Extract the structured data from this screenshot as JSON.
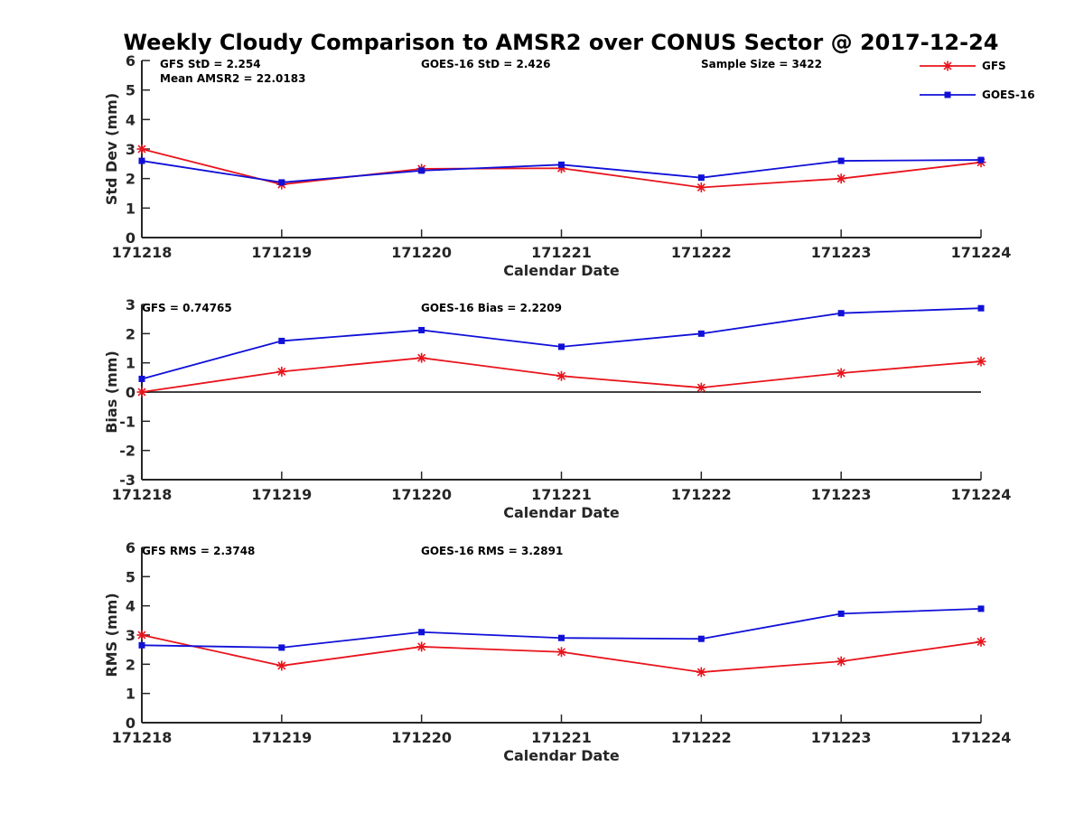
{
  "colors": {
    "gfs": "#e8141c",
    "goes": "#1010d8",
    "axis": "#262626",
    "zero_line": "#000000"
  },
  "legend": {
    "placement": "top-right",
    "entries": [
      {
        "name": "GFS",
        "marker": "asterisk",
        "color": "#e8141c"
      },
      {
        "name": "GOES-16",
        "marker": "square",
        "color": "#1010d8"
      }
    ]
  },
  "chart_data": [
    {
      "type": "line",
      "title": "Weekly Cloudy Comparison to AMSR2 over CONUS Sector @ 2017-12-24",
      "xlabel": "Calendar Date",
      "ylabel": "Std Dev (mm)",
      "categories": [
        "171218",
        "171219",
        "171220",
        "171221",
        "171222",
        "171223",
        "171224"
      ],
      "ylim": [
        0,
        6
      ],
      "yticks": [
        "0",
        "1",
        "2",
        "3",
        "4",
        "5",
        "6"
      ],
      "series": [
        {
          "name": "GFS",
          "values": [
            3.0,
            1.8,
            2.33,
            2.35,
            1.7,
            2.0,
            2.55
          ]
        },
        {
          "name": "GOES-16",
          "values": [
            2.6,
            1.87,
            2.27,
            2.47,
            2.03,
            2.6,
            2.63
          ]
        }
      ],
      "annotations": [
        "GFS StD = 2.254",
        "Mean AMSR2 = 22.0183",
        "GOES-16 StD = 2.426",
        "Sample Size = 3422"
      ]
    },
    {
      "type": "line",
      "xlabel": "Calendar Date",
      "ylabel": "Bias (mm)",
      "categories": [
        "171218",
        "171219",
        "171220",
        "171221",
        "171222",
        "171223",
        "171224"
      ],
      "ylim": [
        -3,
        3
      ],
      "yticks": [
        "-3",
        "-2",
        "-1",
        "0",
        "1",
        "2",
        "3"
      ],
      "zero_line": 0,
      "series": [
        {
          "name": "GFS",
          "values": [
            0.0,
            0.7,
            1.17,
            0.55,
            0.15,
            0.65,
            1.05
          ]
        },
        {
          "name": "GOES-16",
          "values": [
            0.45,
            1.75,
            2.12,
            1.55,
            2.0,
            2.7,
            2.87
          ]
        }
      ],
      "annotations": [
        "GFS = 0.74765",
        "GOES-16 Bias  = 2.2209"
      ]
    },
    {
      "type": "line",
      "xlabel": "Calendar Date",
      "ylabel": "RMS (mm)",
      "categories": [
        "171218",
        "171219",
        "171220",
        "171221",
        "171222",
        "171223",
        "171224"
      ],
      "ylim": [
        0,
        6
      ],
      "yticks": [
        "0",
        "1",
        "2",
        "3",
        "4",
        "5",
        "6"
      ],
      "series": [
        {
          "name": "GFS",
          "values": [
            3.0,
            1.95,
            2.6,
            2.42,
            1.73,
            2.1,
            2.77
          ]
        },
        {
          "name": "GOES-16",
          "values": [
            2.65,
            2.57,
            3.1,
            2.9,
            2.87,
            3.73,
            3.9
          ]
        }
      ],
      "annotations": [
        "GFS RMS = 2.3748",
        "GOES-16 RMS = 3.2891"
      ]
    }
  ]
}
